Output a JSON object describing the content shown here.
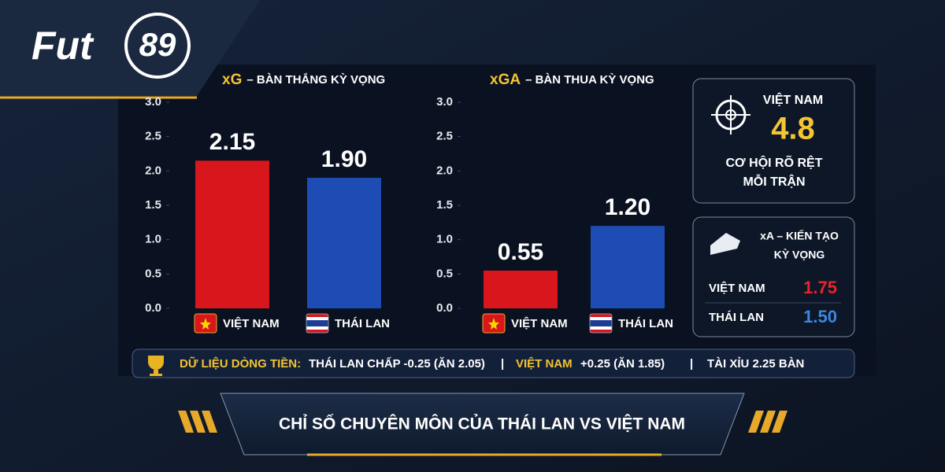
{
  "logo": {
    "text": "Fut",
    "number": "89"
  },
  "chart_data": [
    {
      "type": "bar",
      "title": "xG",
      "subtitle": "– BÀN THẮNG KỲ VỌNG",
      "categories": [
        "VIỆT NAM",
        "THÁI LAN"
      ],
      "values": [
        2.15,
        1.9
      ],
      "value_labels": [
        "2.15",
        "1.90"
      ],
      "colors": [
        "#d8161c",
        "#1d4db4"
      ],
      "ylim": [
        0,
        3
      ],
      "yticks": [
        {
          "value": 0,
          "label": "0.0"
        },
        {
          "value": 0.5,
          "label": "0.5"
        },
        {
          "value": 1,
          "label": "1.0"
        },
        {
          "value": 1.5,
          "label": "1.5"
        },
        {
          "value": 2,
          "label": "2.0"
        },
        {
          "value": 2.5,
          "label": "2.5"
        },
        {
          "value": 3,
          "label": "3.0"
        }
      ],
      "grid": false
    },
    {
      "type": "bar",
      "title": "xGA",
      "subtitle": "– BÀN THUA KỲ VỌNG",
      "categories": [
        "VIỆT NAM",
        "THÁI LAN"
      ],
      "values": [
        0.55,
        1.2
      ],
      "value_labels": [
        "0.55",
        "1.20"
      ],
      "colors": [
        "#d8161c",
        "#1d4db4"
      ],
      "ylim": [
        0,
        3
      ],
      "yticks": [
        {
          "value": 0,
          "label": "0.0"
        },
        {
          "value": 0.5,
          "label": "0.5"
        },
        {
          "value": 1,
          "label": "1.0"
        },
        {
          "value": 1.5,
          "label": "1.5"
        },
        {
          "value": 2,
          "label": "2.0"
        },
        {
          "value": 2.5,
          "label": "2.5"
        },
        {
          "value": 3,
          "label": "3.0"
        }
      ],
      "grid": false
    }
  ],
  "chances": {
    "team": "VIỆT NAM",
    "value": "4.8",
    "label_1": "CƠ HỘI RÕ RỆT",
    "label_2": "MỖI TRẬN"
  },
  "assists": {
    "title_1": "xA – KIẾN TẠO",
    "title_2": "KỲ VỌNG",
    "rows": [
      [
        "VIỆT NAM",
        "1.75"
      ],
      [
        "THÁI LAN",
        "1.50"
      ]
    ]
  },
  "money": {
    "label": "DỮ LIỆU DÒNG TIỀN:",
    "item_1": "THÁI LAN CHẤP -0.25 (ĂN 2.05)",
    "item_2_team": "VIỆT NAM",
    "item_2_rest": "+0.25 (ĂN 1.85)",
    "item_3": "TÀI XỈU 2.25 BÀN"
  },
  "footer": {
    "title": "CHỈ SỐ CHUYÊN MÔN CỦA THÁI LAN VS VIỆT NAM"
  }
}
